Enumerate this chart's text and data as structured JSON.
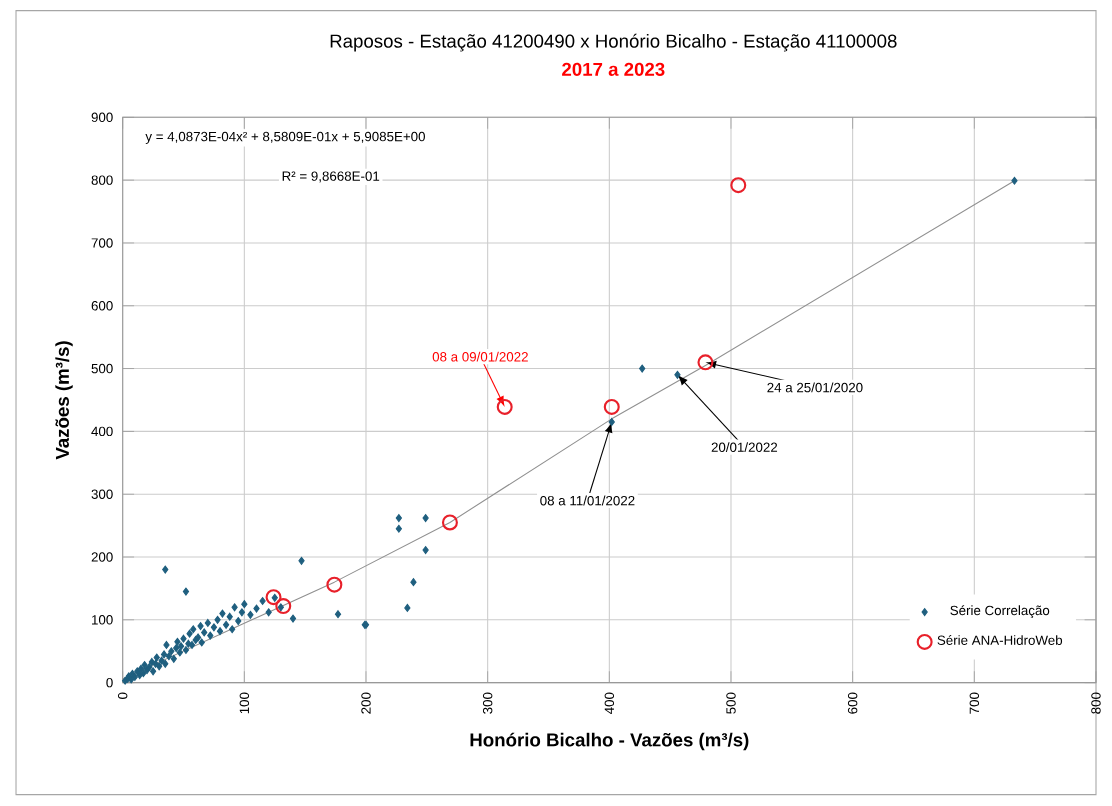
{
  "chart_data": {
    "type": "scatter",
    "title": "Raposos - Estação 41200490 x Honório Bicalho - Estação 41100008",
    "subtitle": "2017 a 2023",
    "xlabel": "Honório Bicalho - Vazões (m³/s)",
    "ylabel": "Vazões (m³/s)",
    "xlim": [
      0,
      800
    ],
    "ylim": [
      0,
      900
    ],
    "xticks": [
      0,
      100,
      200,
      300,
      400,
      500,
      600,
      700,
      800
    ],
    "yticks": [
      0,
      100,
      200,
      300,
      400,
      500,
      600,
      700,
      800,
      900
    ],
    "grid": true,
    "legend": "bottom right",
    "series": [
      {
        "name": "Série Correlação",
        "color": "#1f5f7f",
        "marker": "diamond",
        "x": [
          2,
          4,
          5,
          7,
          8,
          10,
          12,
          14,
          15,
          17,
          18,
          20,
          22,
          24,
          25,
          27,
          28,
          30,
          32,
          34,
          35,
          36,
          38,
          40,
          42,
          44,
          45,
          47,
          48,
          50,
          52,
          54,
          55,
          57,
          58,
          60,
          62,
          64,
          65,
          67,
          70,
          72,
          75,
          78,
          80,
          82,
          85,
          88,
          90,
          92,
          95,
          98,
          100,
          105,
          110,
          115,
          120,
          125,
          130,
          140,
          147,
          35,
          52,
          177,
          199,
          200,
          227,
          227,
          234,
          239,
          249,
          249,
          402,
          456,
          427,
          733
        ],
        "values": [
          3,
          6,
          10,
          5,
          14,
          9,
          18,
          12,
          22,
          15,
          28,
          20,
          25,
          33,
          18,
          30,
          40,
          26,
          35,
          45,
          30,
          60,
          42,
          50,
          38,
          55,
          65,
          48,
          58,
          70,
          52,
          62,
          78,
          60,
          85,
          68,
          72,
          90,
          64,
          80,
          95,
          75,
          88,
          100,
          82,
          110,
          92,
          105,
          85,
          120,
          98,
          112,
          125,
          108,
          118,
          130,
          112,
          135,
          120,
          102,
          194,
          180,
          145,
          109,
          92,
          92,
          262,
          245,
          119,
          160,
          262,
          211,
          415,
          490,
          500,
          799
        ]
      },
      {
        "name": "Série ANA-HidroWeb",
        "color": "#e8202a",
        "marker": "circle",
        "x": [
          124,
          132,
          174,
          269,
          314,
          402,
          479,
          506
        ],
        "values": [
          136,
          122,
          156,
          255,
          439,
          439,
          510,
          792
        ]
      },
      {
        "type": "line",
        "color": "#909090",
        "x": [
          0,
          174,
          269,
          402,
          479,
          733
        ],
        "values": [
          6,
          160,
          255,
          420,
          505,
          799
        ]
      }
    ],
    "annotations": [
      "y = 4,0873E-04x² + 8,5809E-01x + 5,9085E+00",
      "R² = 9,8668E-01",
      {
        "text": "08 a 09/01/2022",
        "x": 314,
        "y": 439
      },
      {
        "text": "24 a 25/01/2020",
        "x": 479,
        "y": 510
      },
      {
        "text": "20/01/2022",
        "x": 456,
        "y": 490
      },
      {
        "text": "08 a 11/01/2022",
        "x": 402,
        "y": 415
      }
    ]
  }
}
